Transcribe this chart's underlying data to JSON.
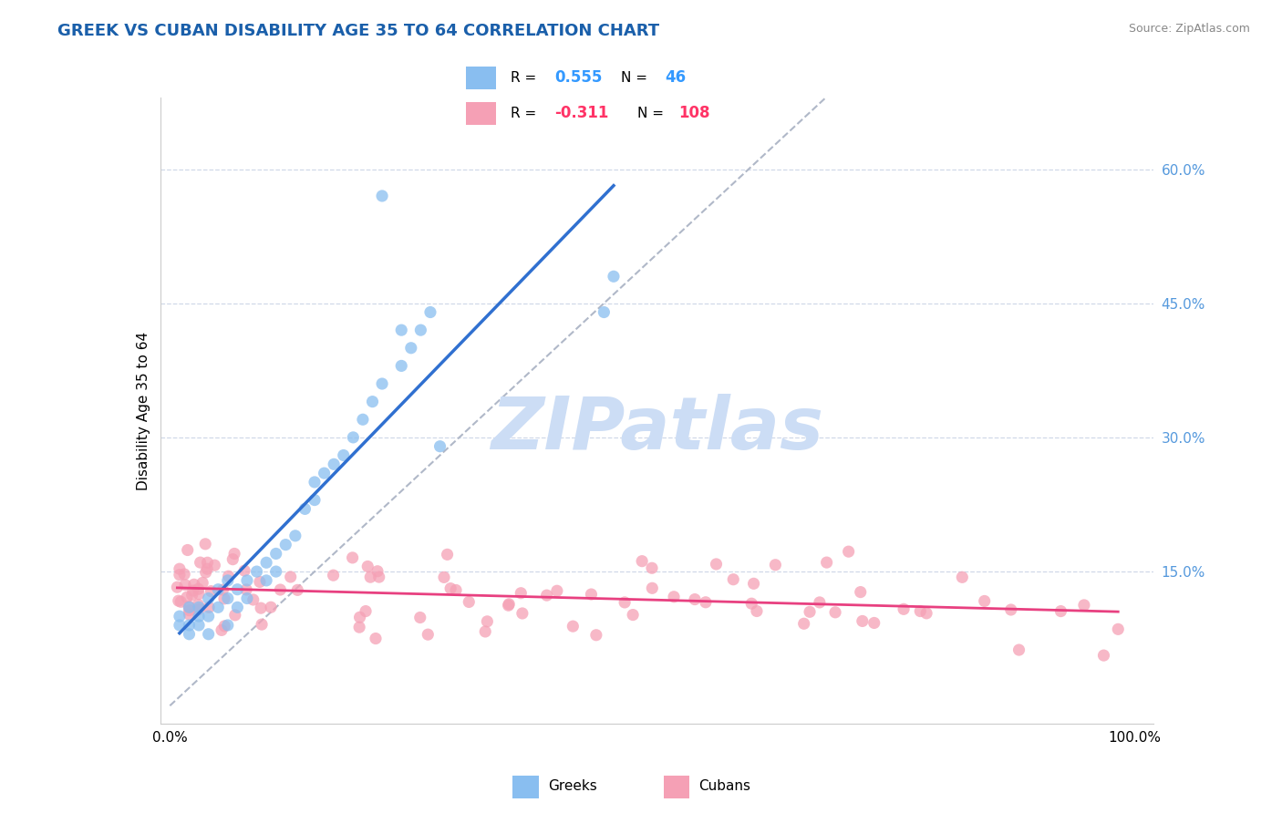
{
  "title": "GREEK VS CUBAN DISABILITY AGE 35 TO 64 CORRELATION CHART",
  "source": "Source: ZipAtlas.com",
  "ylabel": "Disability Age 35 to 64",
  "xlim": [
    -0.01,
    1.02
  ],
  "ylim": [
    -0.02,
    0.68
  ],
  "ytick_positions": [
    0.15,
    0.3,
    0.45,
    0.6
  ],
  "ytick_labels": [
    "15.0%",
    "30.0%",
    "45.0%",
    "60.0%"
  ],
  "greek_R": 0.555,
  "greek_N": 46,
  "cuban_R": -0.311,
  "cuban_N": 108,
  "greek_color": "#89bef0",
  "cuban_color": "#f5a0b5",
  "greek_line_color": "#3070d0",
  "cuban_line_color": "#e84080",
  "ref_line_color": "#b0b8c8",
  "watermark_text": "ZIPatlas",
  "watermark_color": "#ccddf5",
  "grid_color": "#d0d8e8",
  "title_color": "#1a5faa",
  "source_color": "#888888",
  "legend_r_color_greek": "#3399ff",
  "legend_r_color_cuban": "#ff3366",
  "legend_n_color": "#3399ff"
}
